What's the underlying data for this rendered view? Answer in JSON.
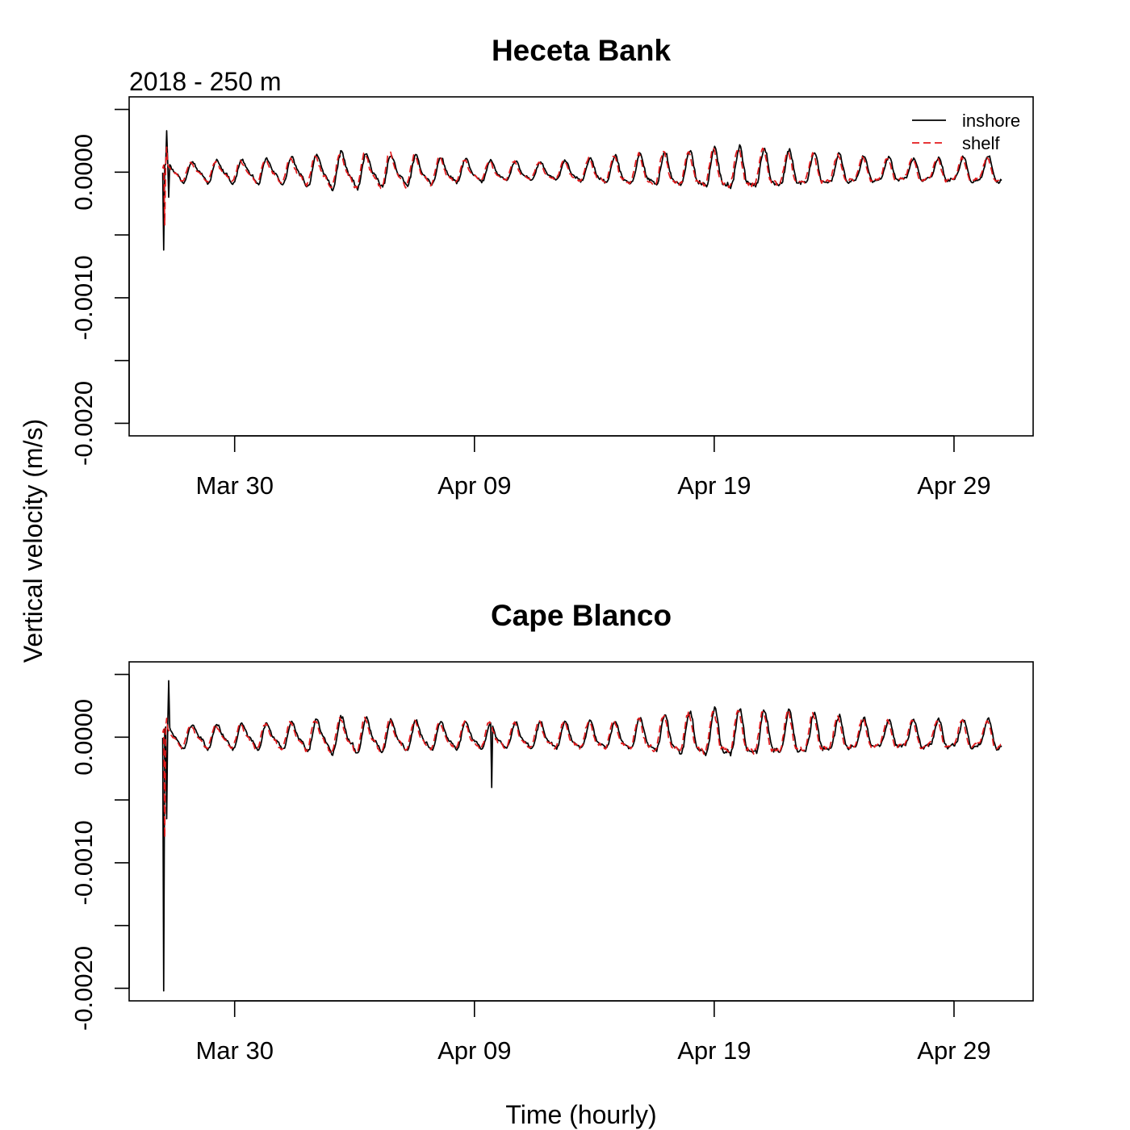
{
  "figure": {
    "ylabel": "Vertical velocity (m/s)",
    "xlabel": "Time (hourly)",
    "subtitle": "2018 - 250 m"
  },
  "colors": {
    "inshore": "#000000",
    "shelf": "#e41a1c"
  },
  "chart_data": [
    {
      "type": "line",
      "title": "Heceta Bank",
      "xlim": [
        -4.4,
        33.3
      ],
      "ylim": [
        -0.0021,
        0.0006
      ],
      "x_ticks": [
        0,
        10,
        20,
        30
      ],
      "x_tick_labels": [
        "Mar 30",
        "Apr 09",
        "Apr 19",
        "Apr 29"
      ],
      "y_ticks": [
        0.0005,
        0.0,
        -0.0005,
        -0.001,
        -0.0015,
        -0.002
      ],
      "y_tick_labels": [
        "",
        "0.0000",
        "",
        "-0.0010",
        "",
        "-0.0020"
      ],
      "legend": {
        "position": "top-right",
        "entries": [
          "inshore",
          "shelf"
        ]
      },
      "series": [
        {
          "name": "inshore",
          "color": "#000000",
          "dash": "solid",
          "x_start": -3.0,
          "x_end": 32.0,
          "step_days": 0.0417,
          "amplitude_profile": [
            [
              -2.8,
              7e-05
            ],
            [
              2,
              9e-05
            ],
            [
              4.5,
              0.00013
            ],
            [
              6.5,
              0.00011
            ],
            [
              10,
              8e-05
            ],
            [
              13,
              6e-05
            ],
            [
              16,
              0.0001
            ],
            [
              21,
              0.00015
            ],
            [
              24,
              0.00012
            ],
            [
              28,
              8e-05
            ],
            [
              32,
              0.0001
            ]
          ],
          "spikes": [
            [
              -2.95,
              -0.00062
            ],
            [
              -2.85,
              0.00033
            ],
            [
              -2.75,
              -0.0002
            ]
          ]
        },
        {
          "name": "shelf",
          "color": "#e41a1c",
          "dash": "dashed",
          "x_start": -3.0,
          "x_end": 32.0,
          "step_days": 0.0417,
          "amplitude_profile": [
            [
              -2.8,
              6e-05
            ],
            [
              2,
              8e-05
            ],
            [
              4.5,
              0.00012
            ],
            [
              6.5,
              0.00012
            ],
            [
              10,
              7e-05
            ],
            [
              13,
              6e-05
            ],
            [
              16,
              0.0001
            ],
            [
              21,
              0.00015
            ],
            [
              24,
              0.00011
            ],
            [
              28,
              8e-05
            ],
            [
              32,
              9e-05
            ]
          ],
          "spikes": [
            [
              -2.92,
              -0.00042
            ],
            [
              -2.82,
              0.0002
            ]
          ]
        }
      ]
    },
    {
      "type": "line",
      "title": "Cape Blanco",
      "xlim": [
        -4.4,
        33.3
      ],
      "ylim": [
        -0.0021,
        0.0006
      ],
      "x_ticks": [
        0,
        10,
        20,
        30
      ],
      "x_tick_labels": [
        "Mar 30",
        "Apr 09",
        "Apr 19",
        "Apr 29"
      ],
      "y_ticks": [
        0.0005,
        0.0,
        -0.0005,
        -0.001,
        -0.0015,
        -0.002
      ],
      "y_tick_labels": [
        "",
        "0.0000",
        "",
        "-0.0010",
        "",
        "-0.0020"
      ],
      "series": [
        {
          "name": "inshore",
          "color": "#000000",
          "dash": "solid",
          "x_start": -3.0,
          "x_end": 32.0,
          "step_days": 0.0417,
          "amplitude_profile": [
            [
              -2.8,
              8e-05
            ],
            [
              2,
              9e-05
            ],
            [
              4.5,
              0.00013
            ],
            [
              8,
              0.0001
            ],
            [
              12,
              9e-05
            ],
            [
              16,
              0.0001
            ],
            [
              20,
              0.00017
            ],
            [
              23,
              0.00016
            ],
            [
              27,
              0.0001
            ],
            [
              32,
              0.00011
            ]
          ],
          "spikes": [
            [
              -2.95,
              -0.00202
            ],
            [
              -2.85,
              -0.00065
            ],
            [
              -2.75,
              0.00045
            ],
            [
              10.7,
              -0.0004
            ]
          ]
        },
        {
          "name": "shelf",
          "color": "#e41a1c",
          "dash": "dashed",
          "x_start": -3.0,
          "x_end": 32.0,
          "step_days": 0.0417,
          "amplitude_profile": [
            [
              -2.8,
              7e-05
            ],
            [
              2,
              9e-05
            ],
            [
              4.5,
              0.00012
            ],
            [
              8,
              0.0001
            ],
            [
              12,
              9e-05
            ],
            [
              16,
              0.0001
            ],
            [
              20,
              0.00016
            ],
            [
              23,
              0.00015
            ],
            [
              27,
              0.0001
            ],
            [
              32,
              0.0001
            ]
          ],
          "spikes": [
            [
              -2.92,
              -0.0008
            ],
            [
              -2.82,
              0.00015
            ]
          ]
        }
      ]
    }
  ]
}
